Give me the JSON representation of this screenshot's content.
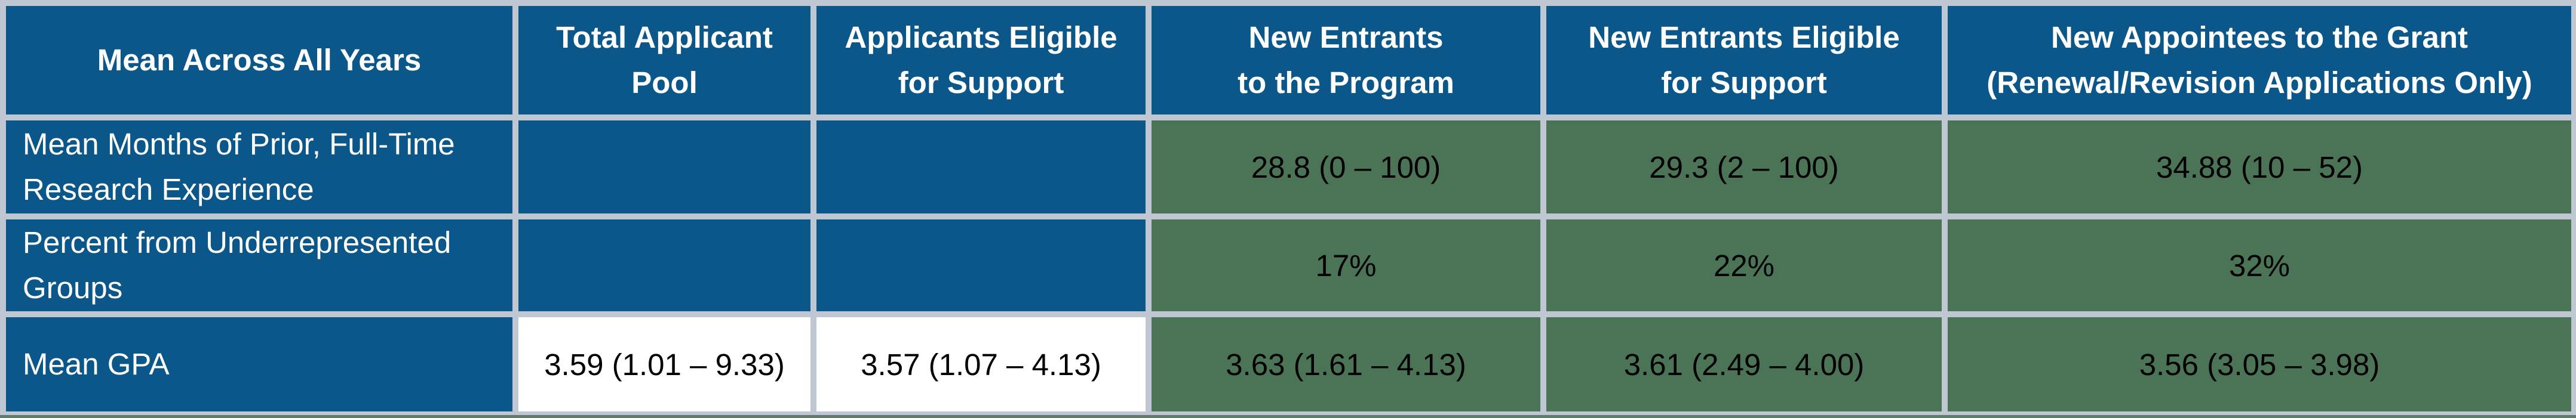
{
  "table": {
    "title": "Training program applicant and appointee statistics table",
    "columns": [
      {
        "label": "Mean Across All Years"
      },
      {
        "label": "Total Applicant\nPool"
      },
      {
        "label": "Applicants Eligible\nfor Support"
      },
      {
        "label": "New Entrants\nto the Program"
      },
      {
        "label": "New Entrants Eligible\nfor Support"
      },
      {
        "label": "New Appointees to the Grant\n(Renewal/Revision Applications Only)"
      }
    ],
    "rows": [
      {
        "label": "Mean Months of Prior, Full-Time\nResearch Experience",
        "cells": [
          "",
          "",
          "28.8 (0 – 100)",
          "29.3 (2 – 100)",
          "34.88 (10 – 52)"
        ]
      },
      {
        "label": "Percent from Underrepresented\nGroups",
        "cells": [
          "",
          "",
          "17%",
          "22%",
          "32%"
        ]
      },
      {
        "label": "Mean GPA",
        "cells": [
          "3.59 (1.01 – 9.33)",
          "3.57 (1.07 – 4.13)",
          "3.63 (1.61 – 4.13)",
          "3.61 (2.49 – 4.00)",
          "3.56 (3.05 – 3.98)"
        ]
      }
    ],
    "colors": {
      "header_blue": "#0b5789",
      "cell_green": "#4b7457",
      "cell_white": "#ffffff",
      "grid_silver": "#bfc7d2",
      "bottom_strip_green": "#5e7b6c",
      "header_text": "#ffffff",
      "data_text": "#000000"
    }
  }
}
